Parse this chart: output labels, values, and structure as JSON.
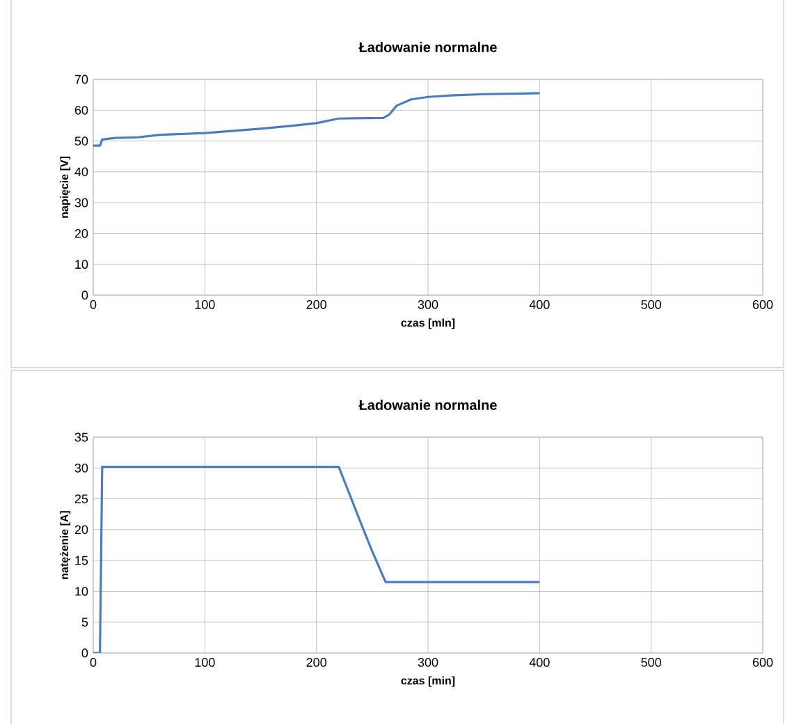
{
  "chart_data": [
    {
      "type": "line",
      "title": "Ładowanie normalne",
      "xlabel": "czas [mln]",
      "ylabel": "napięcie [V]",
      "x": [
        0,
        6,
        8,
        20,
        40,
        60,
        100,
        150,
        180,
        200,
        220,
        260,
        265,
        272,
        285,
        300,
        320,
        350,
        400
      ],
      "series": [
        {
          "color": "#4a7ebb",
          "values": [
            48.5,
            48.5,
            50.5,
            51,
            51.2,
            52,
            52.6,
            54,
            55,
            55.8,
            57.3,
            57.5,
            58.5,
            61.5,
            63.5,
            64.3,
            64.8,
            65.2,
            65.5
          ]
        }
      ],
      "xlim": [
        0,
        600
      ],
      "xticks": [
        0,
        100,
        200,
        300,
        400,
        500,
        600
      ],
      "ylim": [
        0,
        70
      ],
      "yticks": [
        0,
        10,
        20,
        30,
        40,
        50,
        60,
        70
      ],
      "grid": true
    },
    {
      "type": "line",
      "title": "Ładowanie normalne",
      "xlabel": "czas [min]",
      "ylabel": "natężenie [A]",
      "x": [
        0,
        6,
        8,
        60,
        220,
        240,
        250,
        262,
        400
      ],
      "series": [
        {
          "color": "#4a7ebb",
          "values": [
            0,
            0,
            30.2,
            30.2,
            30.2,
            21,
            16.5,
            11.5,
            11.5
          ]
        }
      ],
      "xlim": [
        0,
        600
      ],
      "xticks": [
        0,
        100,
        200,
        300,
        400,
        500,
        600
      ],
      "ylim": [
        0,
        35
      ],
      "yticks": [
        0,
        5,
        10,
        15,
        20,
        25,
        30,
        35
      ],
      "grid": true
    }
  ]
}
